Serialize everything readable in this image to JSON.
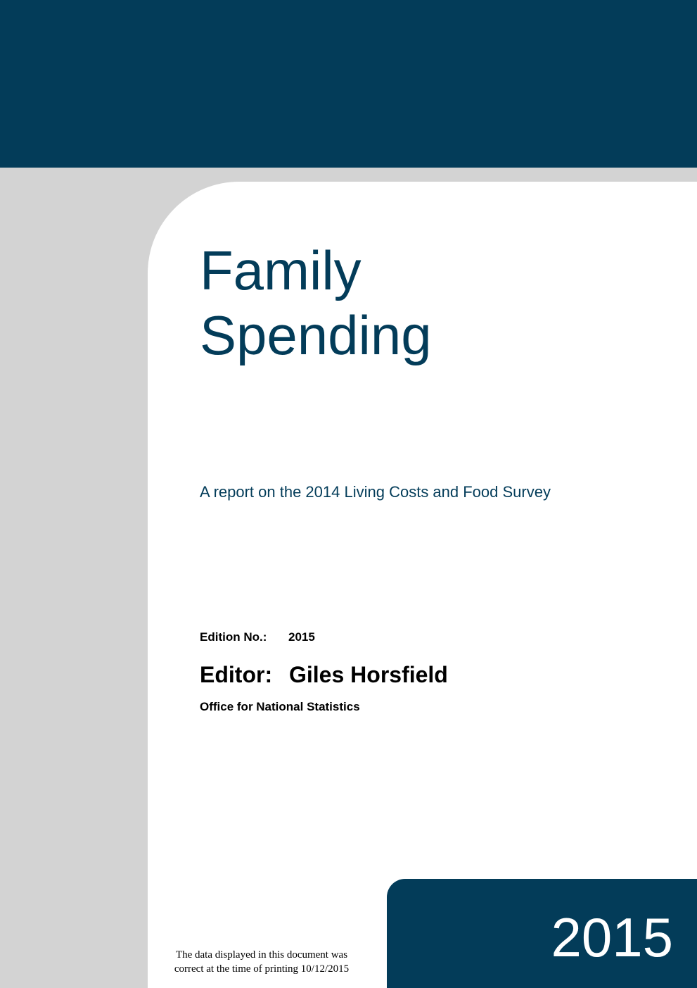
{
  "title": [
    "Family",
    "Spending"
  ],
  "subtitle": "A report on the 2014 Living Costs and Food Survey",
  "edition": {
    "label": "Edition No.:",
    "value": "2015"
  },
  "editor": {
    "label": "Editor:",
    "name": "Giles Horsfield"
  },
  "organisation": "Office for National Statistics",
  "year": "2015",
  "footnote": [
    "The data displayed in this document was",
    "correct at the time of printing 10/12/2015"
  ]
}
